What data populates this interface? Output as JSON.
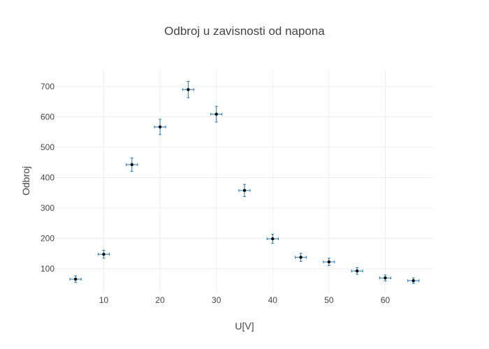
{
  "chart_data": {
    "type": "scatter",
    "title": "Odbroj u zavisnosti od napona",
    "xlabel": "U[V]",
    "ylabel": "Odbroj",
    "xlim": [
      1.5,
      68.5
    ],
    "ylim": [
      20,
      755
    ],
    "x_ticks": [
      10,
      20,
      30,
      40,
      50,
      60
    ],
    "y_ticks": [
      100,
      200,
      300,
      400,
      500,
      600,
      700
    ],
    "grid": true,
    "marker_color": "#000000",
    "error_bar_color": "#1f77b4",
    "x_error": 1,
    "points": [
      {
        "x": 5,
        "y": 66,
        "y_err": 11
      },
      {
        "x": 10,
        "y": 148,
        "y_err": 13
      },
      {
        "x": 15,
        "y": 443,
        "y_err": 22
      },
      {
        "x": 20,
        "y": 567,
        "y_err": 25
      },
      {
        "x": 25,
        "y": 690,
        "y_err": 27
      },
      {
        "x": 30,
        "y": 609,
        "y_err": 26
      },
      {
        "x": 35,
        "y": 358,
        "y_err": 20
      },
      {
        "x": 40,
        "y": 199,
        "y_err": 15
      },
      {
        "x": 45,
        "y": 138,
        "y_err": 13
      },
      {
        "x": 50,
        "y": 123,
        "y_err": 12
      },
      {
        "x": 55,
        "y": 93,
        "y_err": 11
      },
      {
        "x": 60,
        "y": 70,
        "y_err": 10
      },
      {
        "x": 65,
        "y": 61,
        "y_err": 9
      }
    ]
  }
}
